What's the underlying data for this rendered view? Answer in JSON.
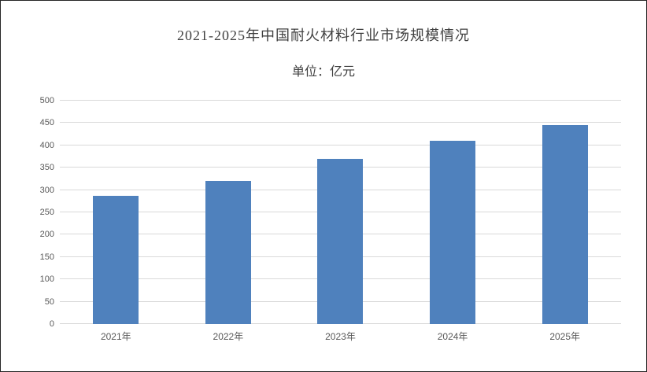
{
  "chart_data": {
    "type": "bar",
    "title": "2021-2025年中国耐火材料行业市场规模情况",
    "subtitle": "单位：亿元",
    "categories": [
      "2021年",
      "2022年",
      "2023年",
      "2024年",
      "2025年"
    ],
    "values": [
      287,
      320,
      370,
      410,
      445
    ],
    "xlabel": "",
    "ylabel": "",
    "ylim": [
      0,
      500
    ],
    "ytick_step": 50,
    "grid": true,
    "legend_position": "none",
    "bar_color": "#4f81bd",
    "gridline_color": "#d9d9d9",
    "axis_text_color": "#595959",
    "title_color": "#404040"
  }
}
